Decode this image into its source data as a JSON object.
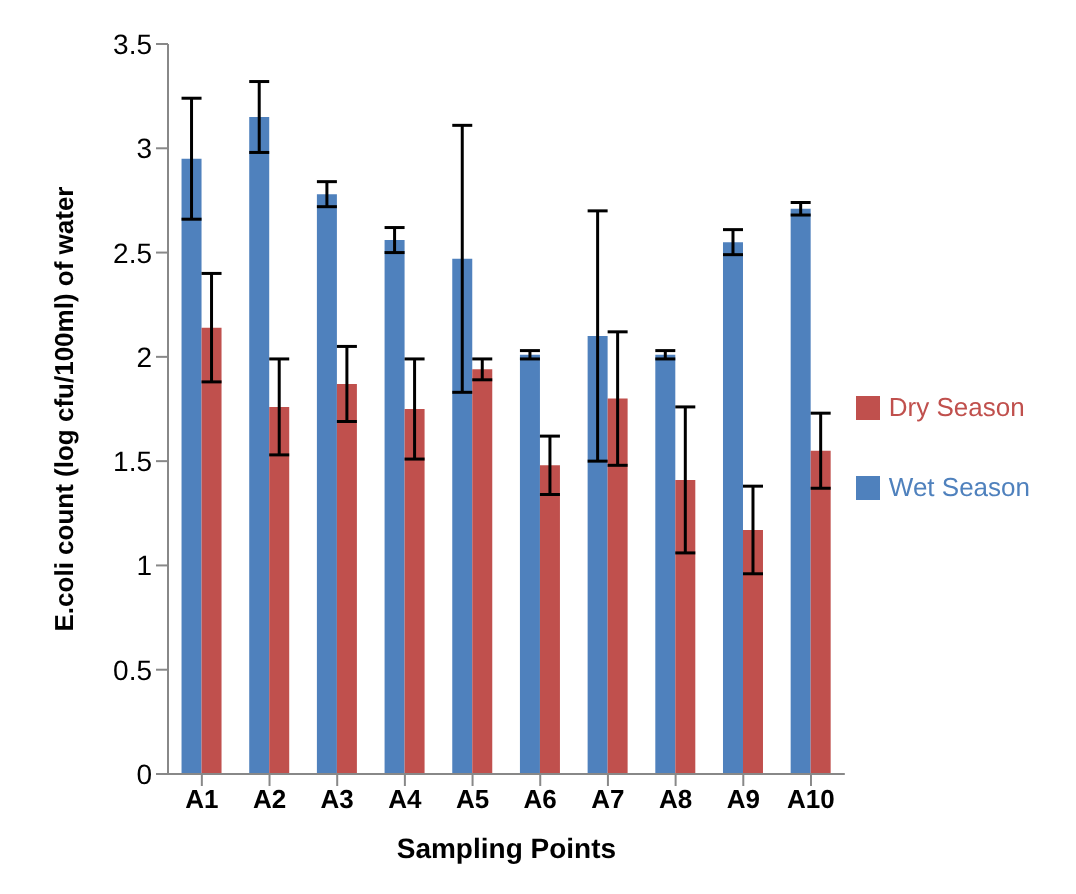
{
  "chart_data": {
    "type": "bar",
    "xlabel": "Sampling Points",
    "ylabel": "E.coli count (log cfu/100ml) of water",
    "categories": [
      "A1",
      "A2",
      "A3",
      "A4",
      "A5",
      "A6",
      "A7",
      "A8",
      "A9",
      "A10"
    ],
    "series": [
      {
        "name": "Wet Season",
        "color": "#4f81bd",
        "values": [
          2.95,
          3.15,
          2.78,
          2.56,
          2.47,
          2.01,
          2.1,
          2.01,
          2.55,
          2.71
        ],
        "errors": [
          0.29,
          0.17,
          0.06,
          0.06,
          0.64,
          0.02,
          0.6,
          0.02,
          0.06,
          0.03
        ]
      },
      {
        "name": "Dry Season",
        "color": "#c0504d",
        "values": [
          2.14,
          1.76,
          1.87,
          1.75,
          1.94,
          1.48,
          1.8,
          1.41,
          1.17,
          1.55
        ],
        "errors": [
          0.26,
          0.23,
          0.18,
          0.24,
          0.05,
          0.14,
          0.32,
          0.35,
          0.21,
          0.18
        ]
      }
    ],
    "ylim": [
      0,
      3.5
    ],
    "yticks": [
      0,
      0.5,
      1,
      1.5,
      2,
      2.5,
      3,
      3.5
    ],
    "grid": false,
    "legend": "right"
  }
}
